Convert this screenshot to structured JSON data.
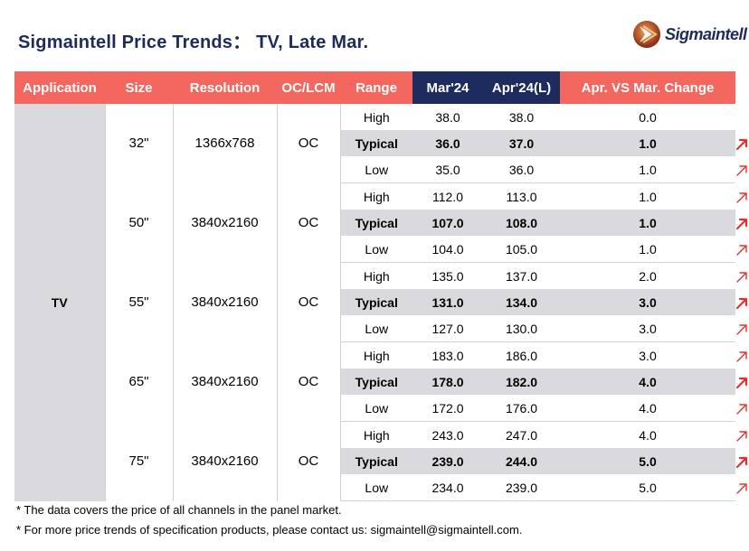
{
  "title": "Sigmaintell Price Trends：  TV, Late Mar.",
  "logo_text": "Sigmaintell",
  "colors": {
    "header_red": "#f4675f",
    "header_navy": "#1d2b5f",
    "shade": "#d9d9de",
    "arrow_red": "#e5312b"
  },
  "chart_data": {
    "type": "table",
    "columns": [
      "Application",
      "Size",
      "Resolution",
      "OC/LCM",
      "Range",
      "Mar'24",
      "Apr'24(L)",
      "Apr. VS Mar. Change"
    ],
    "application": "TV",
    "groups": [
      {
        "size": "32\"",
        "resolution": "1366x768",
        "type": "OC",
        "rows": [
          {
            "range": "High",
            "mar": "38.0",
            "apr": "38.0",
            "change": "0.0",
            "arrow": false
          },
          {
            "range": "Typical",
            "mar": "36.0",
            "apr": "37.0",
            "change": "1.0",
            "arrow": true
          },
          {
            "range": "Low",
            "mar": "35.0",
            "apr": "36.0",
            "change": "1.0",
            "arrow": true
          }
        ]
      },
      {
        "size": "50\"",
        "resolution": "3840x2160",
        "type": "OC",
        "rows": [
          {
            "range": "High",
            "mar": "112.0",
            "apr": "113.0",
            "change": "1.0",
            "arrow": true
          },
          {
            "range": "Typical",
            "mar": "107.0",
            "apr": "108.0",
            "change": "1.0",
            "arrow": true
          },
          {
            "range": "Low",
            "mar": "104.0",
            "apr": "105.0",
            "change": "1.0",
            "arrow": true
          }
        ]
      },
      {
        "size": "55\"",
        "resolution": "3840x2160",
        "type": "OC",
        "rows": [
          {
            "range": "High",
            "mar": "135.0",
            "apr": "137.0",
            "change": "2.0",
            "arrow": true
          },
          {
            "range": "Typical",
            "mar": "131.0",
            "apr": "134.0",
            "change": "3.0",
            "arrow": true
          },
          {
            "range": "Low",
            "mar": "127.0",
            "apr": "130.0",
            "change": "3.0",
            "arrow": true
          }
        ]
      },
      {
        "size": "65\"",
        "resolution": "3840x2160",
        "type": "OC",
        "rows": [
          {
            "range": "High",
            "mar": "183.0",
            "apr": "186.0",
            "change": "3.0",
            "arrow": true
          },
          {
            "range": "Typical",
            "mar": "178.0",
            "apr": "182.0",
            "change": "4.0",
            "arrow": true
          },
          {
            "range": "Low",
            "mar": "172.0",
            "apr": "176.0",
            "change": "4.0",
            "arrow": true
          }
        ]
      },
      {
        "size": "75\"",
        "resolution": "3840x2160",
        "type": "OC",
        "rows": [
          {
            "range": "High",
            "mar": "243.0",
            "apr": "247.0",
            "change": "4.0",
            "arrow": true
          },
          {
            "range": "Typical",
            "mar": "239.0",
            "apr": "244.0",
            "change": "5.0",
            "arrow": true
          },
          {
            "range": "Low",
            "mar": "234.0",
            "apr": "239.0",
            "change": "5.0",
            "arrow": true
          }
        ]
      }
    ]
  },
  "notes": [
    "* The data covers the price of all channels in the panel market.",
    "* For more price trends of specification products, please contact us: sigmaintell@sigmaintell.com."
  ]
}
